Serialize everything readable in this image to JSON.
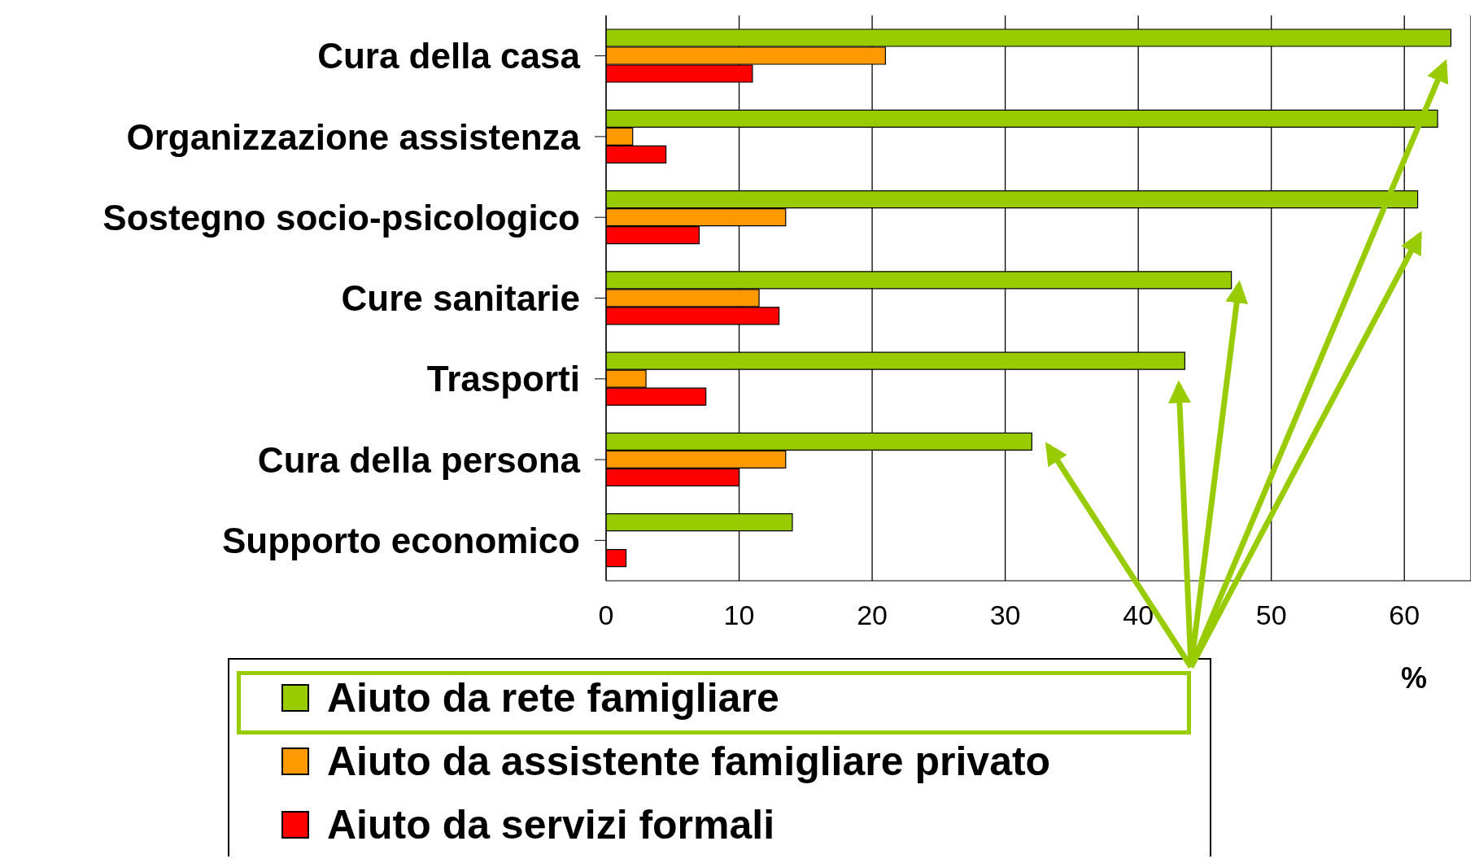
{
  "chart_data": {
    "type": "bar",
    "orientation": "horizontal",
    "xlabel": "%",
    "categories": [
      "Cura della casa",
      "Organizzazione assistenza",
      "Sostegno socio-psicologico",
      "Cure sanitarie",
      "Trasporti",
      "Cura della persona",
      "Supporto economico"
    ],
    "series": [
      {
        "name": "Aiuto da rete famigliare",
        "color": "#99cc00",
        "values": [
          63.5,
          62.5,
          61,
          47,
          43.5,
          32,
          14
        ]
      },
      {
        "name": "Aiuto da assistente famigliare privato",
        "color": "#ff9900",
        "values": [
          21,
          2,
          13.5,
          11.5,
          3,
          13.5,
          0
        ]
      },
      {
        "name": "Aiuto da servizi formali",
        "color": "#ff0000",
        "values": [
          11,
          4.5,
          7,
          13,
          7.5,
          10,
          1.5
        ]
      }
    ],
    "xlim": [
      0,
      65
    ],
    "xticks": [
      0,
      10,
      20,
      30,
      40,
      50,
      60
    ],
    "grid": "x",
    "legend": "bottom"
  }
}
